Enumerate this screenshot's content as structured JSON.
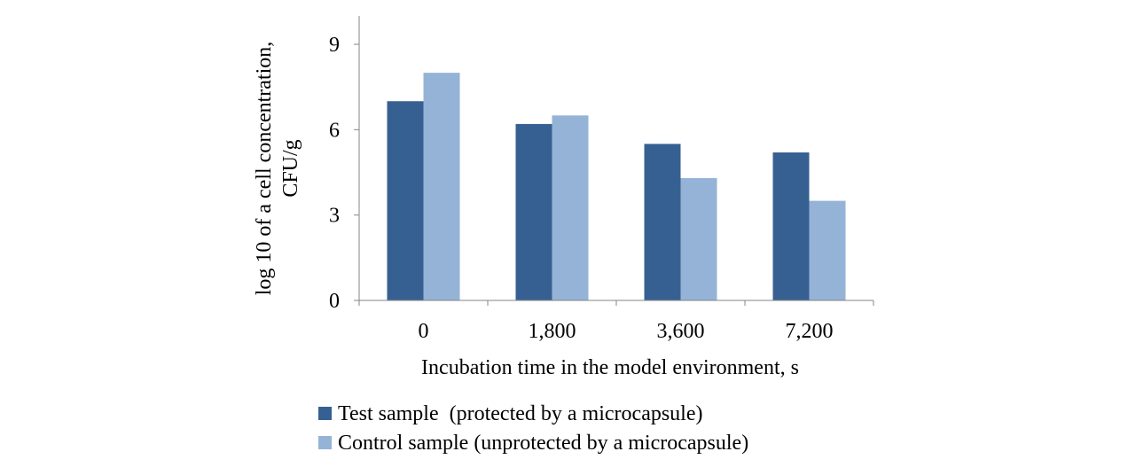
{
  "chart_data": {
    "type": "bar",
    "title": "",
    "xlabel": "Incubation time in the model environment, s",
    "ylabel": [
      "log 10 of a cell concentration,",
      "CFU/g"
    ],
    "categories": [
      "0",
      "1,800",
      "3,600",
      "7,200"
    ],
    "yticks": [
      "0",
      "3",
      "6",
      "9"
    ],
    "ylim": [
      0,
      9
    ],
    "grid": false,
    "legend_position": "bottom",
    "series": [
      {
        "name": "Test sample  (protected by a microcapsule)",
        "color": "#376092",
        "values": [
          7.0,
          6.2,
          5.5,
          5.2
        ]
      },
      {
        "name": "Control sample (unprotected by a microcapsule)",
        "color": "#95B3D7",
        "values": [
          8.0,
          6.5,
          4.3,
          3.5
        ]
      }
    ]
  }
}
